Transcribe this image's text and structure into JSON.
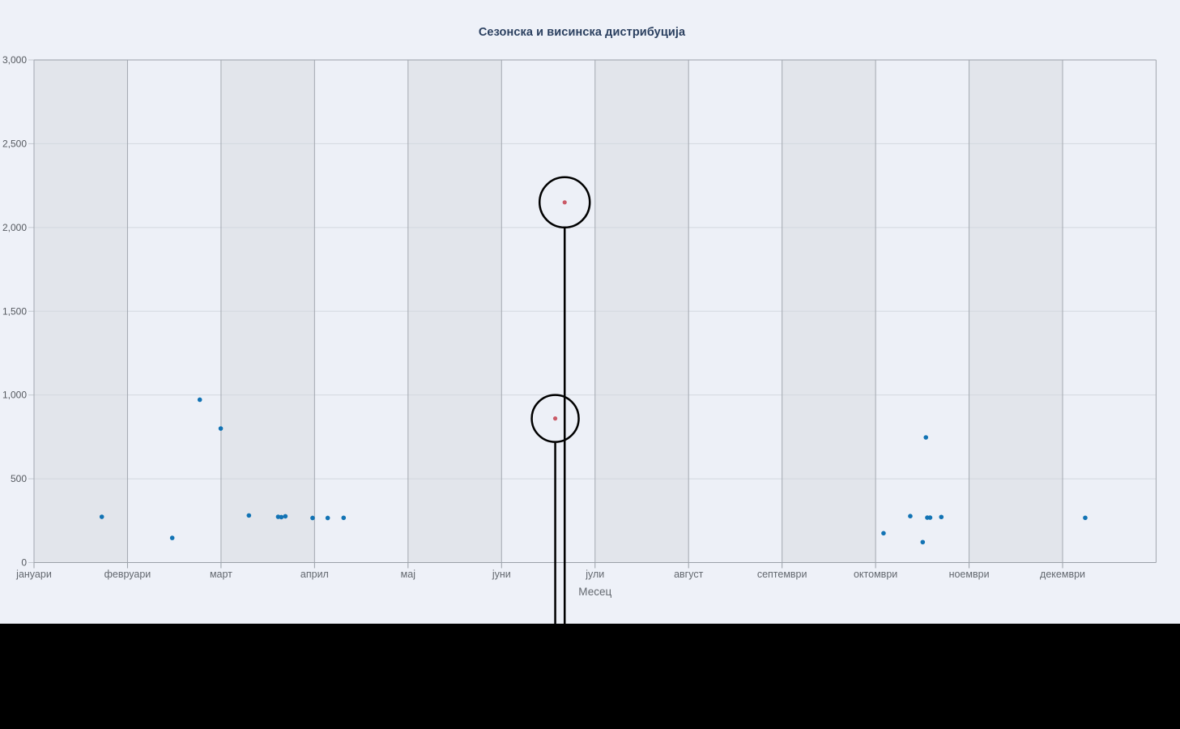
{
  "chart": {
    "title": "Сезонска и висинска дистрибуција"
  },
  "chart_data": {
    "type": "scatter",
    "title": "Сезонска и висинска дистрибуција",
    "xlabel": "Месец",
    "ylabel": "",
    "x_tick_labels": [
      "јануари",
      "февруари",
      "март",
      "април",
      "мај",
      "јуни",
      "јули",
      "август",
      "септември",
      "октомври",
      "ноември",
      "декември"
    ],
    "y_tick_labels": [
      "0",
      "500",
      "1,000",
      "1,500",
      "2,000",
      "2,500",
      "3,000"
    ],
    "y_tick_values": [
      0,
      500,
      1000,
      1500,
      2000,
      2500,
      3000
    ],
    "ylim": [
      0,
      3000
    ],
    "xlim_month_units": [
      0,
      12
    ],
    "grid": true,
    "legend_position": "none",
    "plot_band_colors": [
      "#e2e5eb",
      "#edf0f7"
    ],
    "series": [
      {
        "name": "points-blue",
        "color": "#1273b4",
        "marker_radius": 2.8,
        "points": [
          [
            0.725,
            273
          ],
          [
            1.478,
            147
          ],
          [
            1.773,
            972
          ],
          [
            1.997,
            800
          ],
          [
            2.298,
            281
          ],
          [
            2.611,
            273
          ],
          [
            2.645,
            271
          ],
          [
            2.688,
            276
          ],
          [
            2.979,
            266
          ],
          [
            3.141,
            266
          ],
          [
            3.311,
            267
          ],
          [
            9.085,
            175
          ],
          [
            9.371,
            277
          ],
          [
            9.504,
            122
          ],
          [
            9.538,
            747
          ],
          [
            9.553,
            268
          ],
          [
            9.583,
            268
          ],
          [
            9.703,
            272
          ],
          [
            11.242,
            267
          ]
        ]
      },
      {
        "name": "points-highlighted",
        "color": "#ca5a67",
        "marker_radius": 2.6,
        "points": [
          [
            5.675,
            2150
          ],
          [
            5.574,
            860
          ]
        ]
      }
    ],
    "annotations": [
      {
        "type": "circle-callout",
        "x": 5.675,
        "y": 2150,
        "radius_px": 31
      },
      {
        "type": "circle-callout",
        "x": 5.574,
        "y": 860,
        "radius_px": 29
      }
    ],
    "annotation_color": "#000000"
  },
  "colors": {
    "page_background": "#eef1f8",
    "vertical_gridline": "#a3a8b0",
    "horizontal_gridline": "#d3d8df",
    "axis_line": "#9aa0a8",
    "y_tick_mark": "#c4c9d0",
    "x_tick_label": "#63686f",
    "y_tick_label": "#55595f",
    "axis_title": "#63686f",
    "title_text": "#2a3f5f",
    "footer": "#000000"
  }
}
